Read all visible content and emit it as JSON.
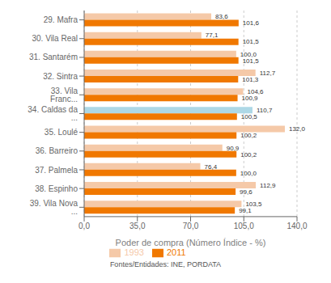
{
  "chart_data": {
    "type": "bar",
    "orientation": "horizontal",
    "categories": [
      "29. Mafra",
      "30. Vila Real",
      "31. Santarém",
      "32. Sintra",
      "33. Vila Franc...",
      "34. Caldas da ...",
      "35. Loulé",
      "36. Barreiro",
      "37. Palmela",
      "38. Espinho",
      "39. Vila Nova ..."
    ],
    "series": [
      {
        "name": "1993",
        "color": "#F5C9A8",
        "colors": [
          "#F5C9A8",
          "#F5C9A8",
          "#F5C9A8",
          "#F5C9A8",
          "#F5C9A8",
          "#ADD8E6",
          "#F5C9A8",
          "#F5C9A8",
          "#F5C9A8",
          "#F5C9A8",
          "#F5C9A8"
        ],
        "values": [
          83.6,
          77.1,
          100.0,
          112.7,
          104.6,
          110.7,
          132.0,
          90.9,
          76.4,
          112.9,
          103.5
        ],
        "value_labels": [
          "83,6",
          "77,1",
          "100,0",
          "112,7",
          "104,6",
          "110,7",
          "132,0",
          "90,9",
          "76,4",
          "112,9",
          "103,5"
        ]
      },
      {
        "name": "2011",
        "color": "#F07800",
        "values": [
          101.6,
          101.5,
          101.5,
          101.3,
          100.9,
          100.5,
          100.2,
          100.2,
          100.0,
          99.6,
          99.1
        ],
        "value_labels": [
          "101,6",
          "101,5",
          "101,5",
          "101,3",
          "100,9",
          "100,5",
          "100,2",
          "100,2",
          "100,0",
          "99,6",
          "99,1"
        ]
      }
    ],
    "xlabel": "Poder de compra (Número Índice - %)",
    "xlim": [
      0,
      140
    ],
    "xticks": [
      {
        "value": 0.0,
        "label": "0,0"
      },
      {
        "value": 35.0,
        "label": "35,0"
      },
      {
        "value": 70.0,
        "label": "70,0"
      },
      {
        "value": 105.0,
        "label": "105,0"
      },
      {
        "value": 140.0,
        "label": "140,0"
      }
    ],
    "grid": true,
    "legend": "bottom",
    "data_labels": true,
    "footnote": "Fontes/Entidades: INE, PORDATA"
  }
}
